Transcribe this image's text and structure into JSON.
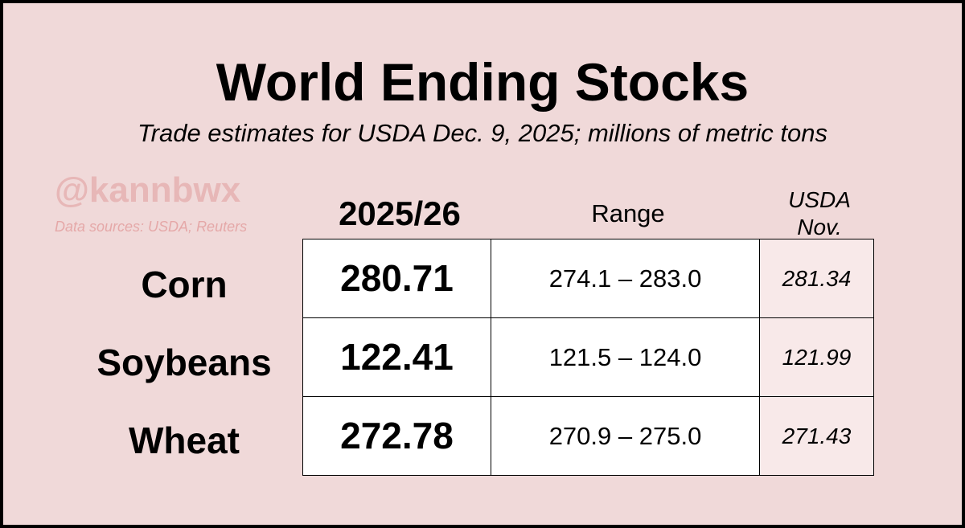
{
  "chart_data": {
    "type": "table",
    "title": "World Ending Stocks",
    "subtitle": "Trade estimates for USDA Dec. 9, 2025; millions of metric tons",
    "watermark": "@kannbwx",
    "sources": "Data sources: USDA; Reuters",
    "columns": {
      "estimate": "2025/26",
      "range": "Range",
      "usda_line1": "USDA",
      "usda_line2": "Nov."
    },
    "rows": [
      {
        "commodity": "Corn",
        "estimate": "280.71",
        "range": "274.1 – 283.0",
        "usda_nov": "281.34"
      },
      {
        "commodity": "Soybeans",
        "estimate": "122.41",
        "range": "121.5 – 124.0",
        "usda_nov": "121.99"
      },
      {
        "commodity": "Wheat",
        "estimate": "272.78",
        "range": "270.9 – 275.0",
        "usda_nov": "271.43"
      }
    ]
  }
}
